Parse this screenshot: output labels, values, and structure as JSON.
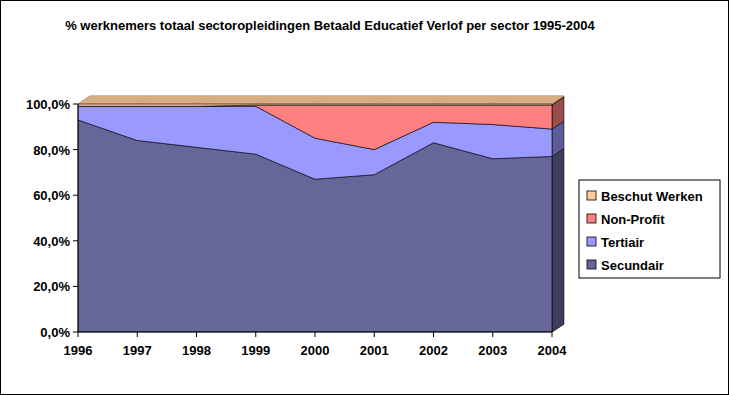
{
  "chart_data": {
    "type": "area",
    "title": "% werknemers totaal sectoropleidingen Betaald Educatief Verlof per sector 1995-2004",
    "categories": [
      "1996",
      "1997",
      "1998",
      "1999",
      "2000",
      "2001",
      "2002",
      "2003",
      "2004"
    ],
    "series": [
      {
        "name": "Secundair",
        "color": "#666699",
        "values": [
          93,
          84,
          81,
          78,
          67,
          69,
          83,
          76,
          77
        ]
      },
      {
        "name": "Tertiair",
        "color": "#9999ff",
        "values": [
          6,
          15,
          18,
          21,
          18,
          11,
          9,
          15,
          12
        ]
      },
      {
        "name": "Non-Profit",
        "color": "#ff8080",
        "values": [
          0,
          0,
          0,
          0.5,
          14.5,
          19.5,
          7.5,
          8.5,
          10.5
        ]
      },
      {
        "name": "Beschut Werken",
        "color": "#ffcc99",
        "values": [
          1,
          1,
          1,
          0.5,
          0.5,
          0.5,
          0.5,
          0.5,
          0.5
        ]
      }
    ],
    "ylim": [
      0,
      100
    ],
    "yticks": [
      {
        "value": 0,
        "label": "0,0%"
      },
      {
        "value": 20,
        "label": "20,0%"
      },
      {
        "value": 40,
        "label": "40,0%"
      },
      {
        "value": 60,
        "label": "60,0%"
      },
      {
        "value": 80,
        "label": "80,0%"
      },
      {
        "value": 100,
        "label": "100,0%"
      }
    ],
    "stacked": true,
    "grid": false,
    "legend": "right"
  }
}
